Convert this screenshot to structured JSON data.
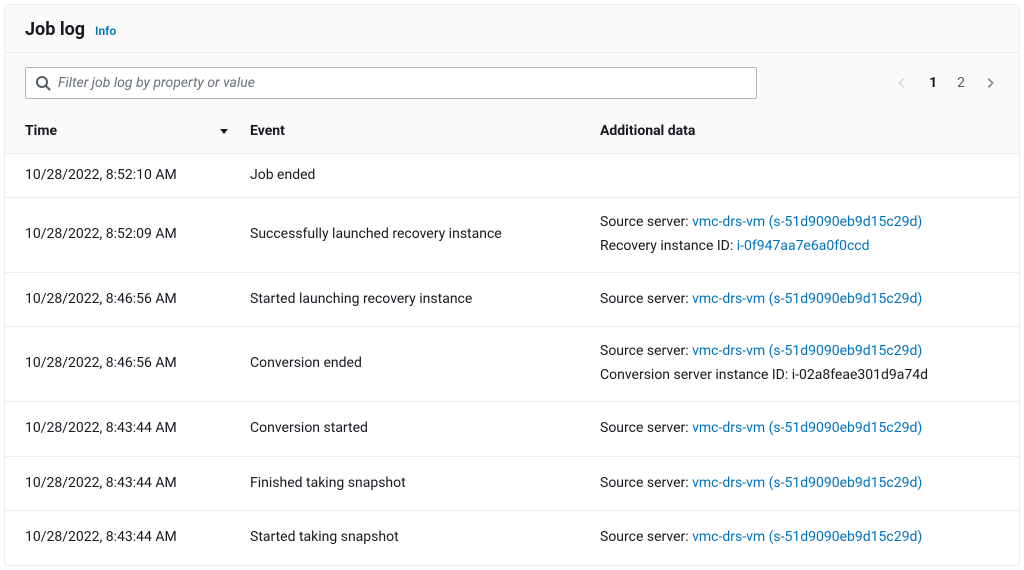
{
  "header": {
    "title": "Job log",
    "info_label": "Info"
  },
  "search": {
    "placeholder": "Filter job log by property or value"
  },
  "pagination": {
    "pages": [
      "1",
      "2"
    ],
    "current_index": 0
  },
  "columns": {
    "time": "Time",
    "event": "Event",
    "additional_data": "Additional data"
  },
  "labels": {
    "source_server": "Source server:",
    "recovery_instance_id": "Recovery instance ID:",
    "conversion_server_instance_id": "Conversion server instance ID:"
  },
  "colors": {
    "link": "#0073bb",
    "text": "#16191f",
    "border": "#eaeded",
    "background": "#ffffff",
    "header_background": "#fafafa"
  },
  "rows": [
    {
      "time": "10/28/2022, 8:52:10 AM",
      "event": "Job ended",
      "additional": []
    },
    {
      "time": "10/28/2022, 8:52:09 AM",
      "event": "Successfully launched recovery instance",
      "additional": [
        {
          "label_key": "source_server",
          "link_text": "vmc-drs-vm (s-51d9090eb9d15c29d)",
          "is_link": true
        },
        {
          "label_key": "recovery_instance_id",
          "link_text": "i-0f947aa7e6a0f0ccd",
          "is_link": true
        }
      ]
    },
    {
      "time": "10/28/2022, 8:46:56 AM",
      "event": "Started launching recovery instance",
      "additional": [
        {
          "label_key": "source_server",
          "link_text": "vmc-drs-vm (s-51d9090eb9d15c29d)",
          "is_link": true
        }
      ]
    },
    {
      "time": "10/28/2022, 8:46:56 AM",
      "event": "Conversion ended",
      "additional": [
        {
          "label_key": "source_server",
          "link_text": "vmc-drs-vm (s-51d9090eb9d15c29d)",
          "is_link": true
        },
        {
          "label_key": "conversion_server_instance_id",
          "link_text": "i-02a8feae301d9a74d",
          "is_link": false
        }
      ]
    },
    {
      "time": "10/28/2022, 8:43:44 AM",
      "event": "Conversion started",
      "additional": [
        {
          "label_key": "source_server",
          "link_text": "vmc-drs-vm (s-51d9090eb9d15c29d)",
          "is_link": true
        }
      ]
    },
    {
      "time": "10/28/2022, 8:43:44 AM",
      "event": "Finished taking snapshot",
      "additional": [
        {
          "label_key": "source_server",
          "link_text": "vmc-drs-vm (s-51d9090eb9d15c29d)",
          "is_link": true
        }
      ]
    },
    {
      "time": "10/28/2022, 8:43:44 AM",
      "event": "Started taking snapshot",
      "additional": [
        {
          "label_key": "source_server",
          "link_text": "vmc-drs-vm (s-51d9090eb9d15c29d)",
          "is_link": true
        }
      ]
    }
  ]
}
